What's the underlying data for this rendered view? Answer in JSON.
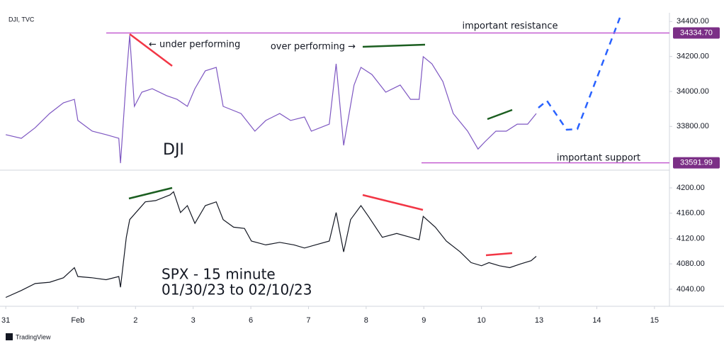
{
  "chart_data": [
    {
      "type": "line",
      "title": "DJI, TVC",
      "name": "DJI",
      "color": "#7e57c2",
      "xlim": [
        -0.35,
        11.26
      ],
      "ylim": [
        33550,
        34450
      ],
      "yticks": [
        {
          "value": 33800,
          "label": "33800.00"
        },
        {
          "value": 34000,
          "label": "34000.00"
        },
        {
          "value": 34200,
          "label": "34200.00"
        },
        {
          "value": 34400,
          "label": "34400.00"
        }
      ],
      "x": [
        -0.25,
        0.02,
        0.26,
        0.51,
        0.75,
        0.94,
        1.0,
        1.25,
        1.49,
        1.71,
        1.74,
        1.84,
        1.9,
        1.98,
        2.11,
        2.29,
        2.54,
        2.72,
        2.9,
        3.03,
        3.21,
        3.4,
        3.52,
        3.83,
        4.07,
        4.26,
        4.5,
        4.69,
        4.93,
        5.05,
        5.36,
        5.48,
        5.61,
        5.79,
        5.91,
        6.1,
        6.34,
        6.59,
        6.77,
        6.92,
        6.99,
        7.14,
        7.33,
        7.51,
        7.76,
        7.94,
        8.06,
        8.25,
        8.43,
        8.62,
        8.8,
        8.95
      ],
      "values": [
        33753,
        33732,
        33793,
        33874,
        33935,
        33955,
        33834,
        33773,
        33753,
        33732,
        33590,
        34077,
        34321,
        33915,
        33996,
        34016,
        33976,
        33955,
        33915,
        34016,
        34118,
        34138,
        33915,
        33874,
        33773,
        33834,
        33874,
        33834,
        33854,
        33773,
        33813,
        34158,
        33692,
        34037,
        34138,
        34097,
        33996,
        34037,
        33955,
        33955,
        34199,
        34158,
        34057,
        33874,
        33773,
        33671,
        33712,
        33773,
        33773,
        33813,
        33813,
        33874
      ],
      "levels": [
        {
          "name": "important resistance",
          "value": 34334.7,
          "value_label": "34334.70"
        },
        {
          "name": "important support",
          "value": 33591.99,
          "value_label": "33591.99"
        }
      ],
      "annotations": [
        "← under performing",
        "over performing →"
      ]
    },
    {
      "type": "line",
      "name": "SPX - 15 minute",
      "subtitle": "01/30/23 to 02/10/23",
      "color": "#131722",
      "xlim": [
        -0.35,
        11.26
      ],
      "ylim": [
        4013,
        4228
      ],
      "yticks": [
        {
          "value": 4040,
          "label": "4040.00"
        },
        {
          "value": 4080,
          "label": "4080.00"
        },
        {
          "value": 4120,
          "label": "4120.00"
        },
        {
          "value": 4160,
          "label": "4160.00"
        },
        {
          "value": 4200,
          "label": "4200.00"
        }
      ],
      "xticks": [
        {
          "value": -0.25,
          "label": "31"
        },
        {
          "value": 1,
          "label": "Feb"
        },
        {
          "value": 2,
          "label": "2"
        },
        {
          "value": 3,
          "label": "3"
        },
        {
          "value": 4,
          "label": "6"
        },
        {
          "value": 5,
          "label": "7"
        },
        {
          "value": 6,
          "label": "8"
        },
        {
          "value": 7,
          "label": "9"
        },
        {
          "value": 8,
          "label": "10"
        },
        {
          "value": 9,
          "label": "13"
        },
        {
          "value": 10,
          "label": "14"
        },
        {
          "value": 11,
          "label": "15"
        }
      ],
      "x": [
        -0.25,
        0.02,
        0.26,
        0.51,
        0.75,
        0.94,
        1.0,
        1.25,
        1.49,
        1.71,
        1.74,
        1.84,
        1.9,
        2.17,
        2.35,
        2.6,
        2.66,
        2.78,
        2.9,
        3.03,
        3.21,
        3.4,
        3.52,
        3.7,
        3.89,
        4.01,
        4.26,
        4.5,
        4.75,
        4.93,
        5.12,
        5.36,
        5.48,
        5.61,
        5.73,
        5.91,
        6.04,
        6.28,
        6.53,
        6.77,
        6.92,
        6.99,
        7.2,
        7.39,
        7.63,
        7.82,
        8.0,
        8.13,
        8.31,
        8.49,
        8.68,
        8.86,
        8.95
      ],
      "values": [
        4027,
        4038,
        4049,
        4051,
        4058,
        4074,
        4060,
        4058,
        4055,
        4060,
        4043,
        4122,
        4150,
        4178,
        4180,
        4189,
        4194,
        4161,
        4172,
        4144,
        4172,
        4178,
        4150,
        4138,
        4136,
        4116,
        4110,
        4114,
        4110,
        4105,
        4110,
        4116,
        4161,
        4099,
        4150,
        4172,
        4155,
        4122,
        4128,
        4122,
        4118,
        4155,
        4138,
        4116,
        4099,
        4082,
        4077,
        4082,
        4077,
        4074,
        4080,
        4085,
        4092
      ]
    }
  ],
  "footer": "TradingView"
}
